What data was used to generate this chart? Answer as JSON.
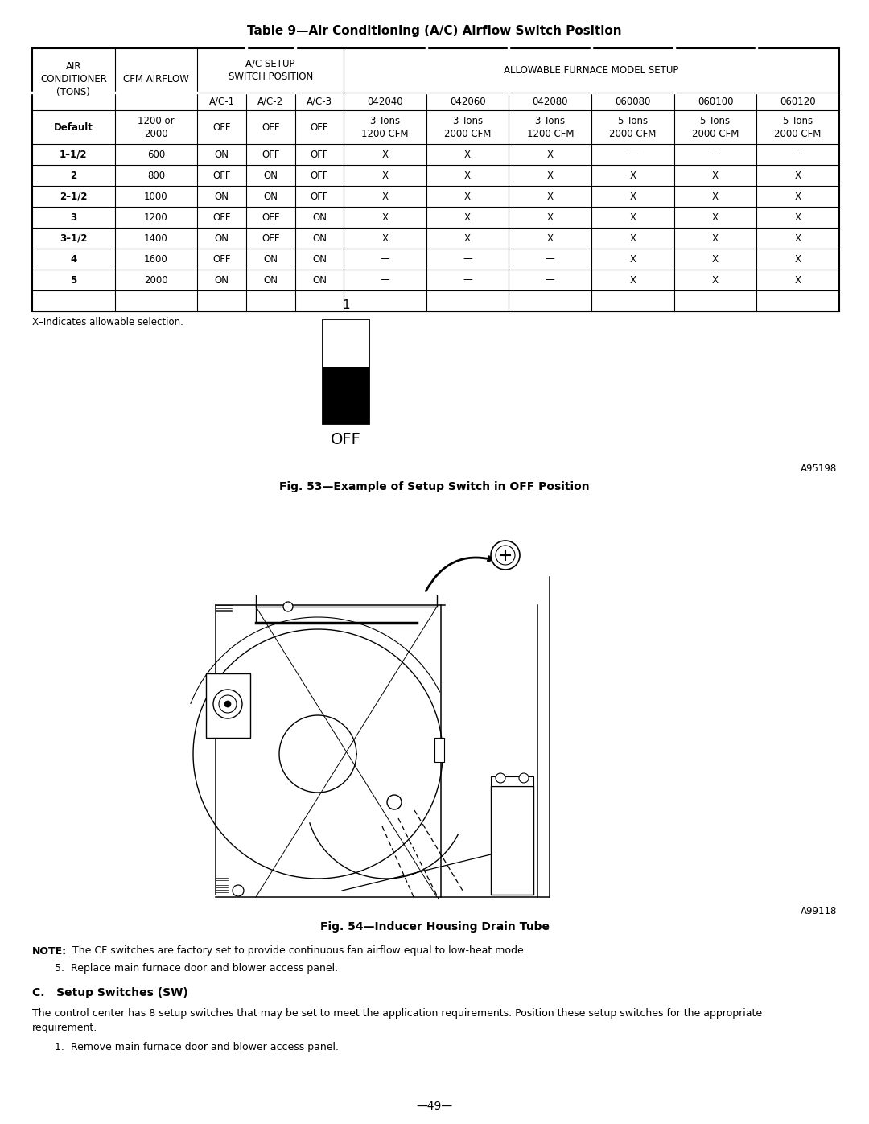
{
  "title": "Table 9—Air Conditioning (A/C) Airflow Switch Position",
  "background_color": "#ffffff",
  "page_number": "—49—",
  "table_data": [
    [
      "Default",
      "1200 or\n2000",
      "OFF",
      "OFF",
      "OFF",
      "3 Tons\n1200 CFM",
      "3 Tons\n2000 CFM",
      "3 Tons\n1200 CFM",
      "5 Tons\n2000 CFM",
      "5 Tons\n2000 CFM",
      "5 Tons\n2000 CFM"
    ],
    [
      "1–1/2",
      "600",
      "ON",
      "OFF",
      "OFF",
      "X",
      "X",
      "X",
      "—",
      "—",
      "—"
    ],
    [
      "2",
      "800",
      "OFF",
      "ON",
      "OFF",
      "X",
      "X",
      "X",
      "X",
      "X",
      "X"
    ],
    [
      "2–1/2",
      "1000",
      "ON",
      "ON",
      "OFF",
      "X",
      "X",
      "X",
      "X",
      "X",
      "X"
    ],
    [
      "3",
      "1200",
      "OFF",
      "OFF",
      "ON",
      "X",
      "X",
      "X",
      "X",
      "X",
      "X"
    ],
    [
      "3–1/2",
      "1400",
      "ON",
      "OFF",
      "ON",
      "X",
      "X",
      "X",
      "X",
      "X",
      "X"
    ],
    [
      "4",
      "1600",
      "OFF",
      "ON",
      "ON",
      "—",
      "—",
      "—",
      "X",
      "X",
      "X"
    ],
    [
      "5",
      "2000",
      "ON",
      "ON",
      "ON",
      "—",
      "—",
      "—",
      "X",
      "X",
      "X"
    ]
  ],
  "footnote": "X–Indicates allowable selection.",
  "switch_label": "1",
  "switch_off_label": "OFF",
  "switch_ref": "A95198",
  "fig53_caption": "Fig. 53—Example of Setup Switch in OFF Position",
  "fig54_ref": "A99118",
  "fig54_caption": "Fig. 54—Inducer Housing Drain Tube",
  "note_bold": "NOTE:",
  "note_rest": "  The CF switches are factory set to provide continuous fan airflow equal to low-heat mode.",
  "step5_text": "5.  Replace main furnace door and blower access panel.",
  "section_c_title": "C.   Setup Switches (SW)",
  "section_c_line1": "The control center has 8 setup switches that may be set to meet the application requirements. Position these setup switches for the appropriate",
  "section_c_line2": "requirement.",
  "step1_text": "1.  Remove main furnace door and blower access panel."
}
